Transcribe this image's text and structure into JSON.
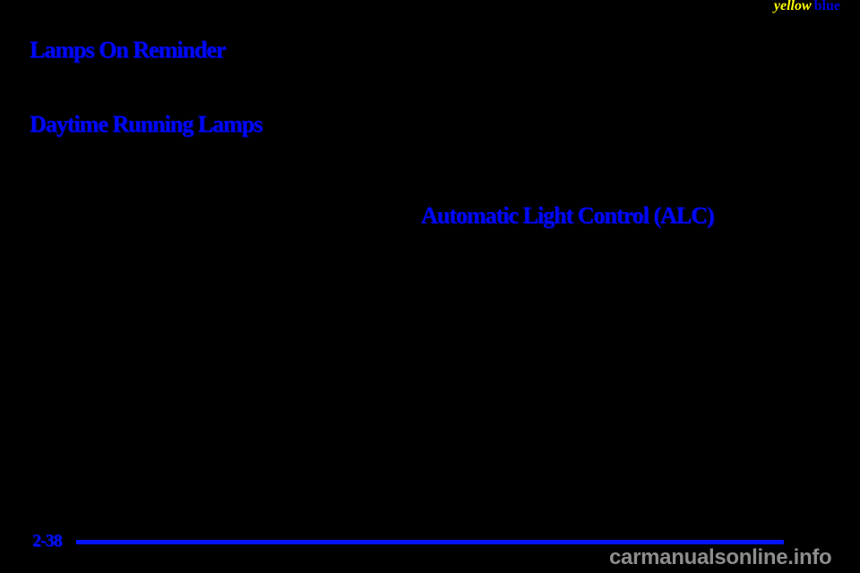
{
  "document": {
    "corner_tags": {
      "yellow": "yellow",
      "blue": "blue"
    },
    "headings": {
      "lamps_on_reminder": "Lamps On Reminder",
      "daytime_running_lamps": "Daytime Running Lamps",
      "automatic_light_control": "Automatic Light Control (ALC)"
    },
    "footer": {
      "page_number": "2-38"
    },
    "watermark": "carmanualsonline.info"
  },
  "colors": {
    "background": "#000000",
    "heading_blue": "#0008f8",
    "corner_blue": "#0000d8",
    "accent_yellow": "#ffff00",
    "rule_blue": "#0313ff",
    "page_number_blue": "#0110f0",
    "watermark_gray": "#8d8d8d"
  }
}
